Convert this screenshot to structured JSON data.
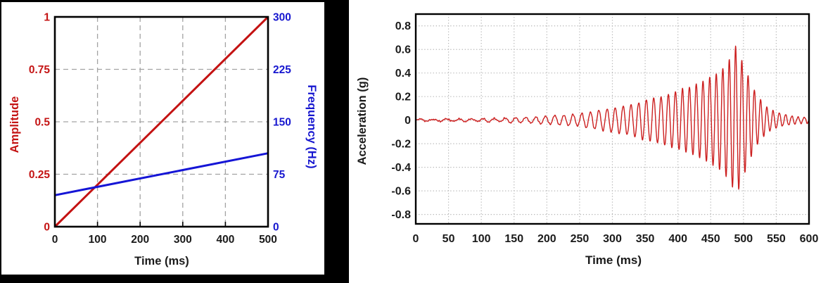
{
  "page": {
    "background": "#ffffff"
  },
  "chart_data": [
    {
      "type": "line",
      "title": "",
      "xlabel": "Time (ms)",
      "xlim": [
        0,
        500
      ],
      "x_ticks": [
        "0",
        "100",
        "200",
        "300",
        "400",
        "500"
      ],
      "x_tick_values": [
        0,
        100,
        200,
        300,
        400,
        500
      ],
      "grid": {
        "style": "dashed",
        "color": "#a3a3a3",
        "on": true
      },
      "frame_color": "#000000",
      "y_left": {
        "label": "Amplitude",
        "color": "#c41414",
        "lim": [
          0,
          1
        ],
        "ticks": [
          "0",
          "0.25",
          "0.5",
          "0.75",
          "1"
        ],
        "tick_values": [
          0,
          0.25,
          0.5,
          0.75,
          1
        ]
      },
      "y_right": {
        "label": "Frequency (Hz)",
        "color": "#1717cf",
        "lim": [
          0,
          300
        ],
        "ticks": [
          "0",
          "75",
          "150",
          "225",
          "300"
        ],
        "tick_values": [
          0,
          75,
          150,
          225,
          300
        ]
      },
      "series": [
        {
          "name": "Amplitude",
          "axis": "left",
          "color": "#c41212",
          "points": [
            [
              0,
              0
            ],
            [
              500,
              1
            ]
          ]
        },
        {
          "name": "Frequency (Hz)",
          "axis": "right",
          "color": "#1515d6",
          "points": [
            [
              0,
              45
            ],
            [
              500,
              105
            ]
          ]
        }
      ]
    },
    {
      "type": "line",
      "title": "",
      "xlabel": "Time (ms)",
      "ylabel": "Acceleration (g)",
      "xlim": [
        0,
        600
      ],
      "x_ticks": [
        "0",
        "50",
        "100",
        "150",
        "200",
        "250",
        "300",
        "350",
        "400",
        "450",
        "500",
        "550",
        "600"
      ],
      "x_tick_values": [
        0,
        50,
        100,
        150,
        200,
        250,
        300,
        350,
        400,
        450,
        500,
        550,
        600
      ],
      "ylim": [
        -0.88,
        0.9
      ],
      "y_ticks": [
        "0.8",
        "0.6",
        "0.4",
        "0.2",
        "0",
        "-0.2",
        "-0.4",
        "-0.6",
        "-0.8"
      ],
      "y_tick_values": [
        0.8,
        0.6,
        0.4,
        0.2,
        0,
        -0.2,
        -0.4,
        -0.6,
        -0.8
      ],
      "grid": {
        "style": "dotted",
        "color": "#b5b5b5",
        "on": true
      },
      "frame_color": "#000000",
      "series": [
        {
          "name": "acceleration",
          "color": "#cc2020",
          "signal": {
            "kind": "linear-chirp",
            "f0_hz": 45,
            "f1_hz": 105,
            "sweep_start_ms": 0,
            "sweep_end_ms": 500,
            "peak_g": 0.63,
            "peak_time_ms": 488,
            "envelope_g": [
              [
                0,
                0.008
              ],
              [
                60,
                0.01
              ],
              [
                110,
                0.013
              ],
              [
                150,
                0.02
              ],
              [
                200,
                0.032
              ],
              [
                250,
                0.055
              ],
              [
                300,
                0.1
              ],
              [
                330,
                0.13
              ],
              [
                350,
                0.17
              ],
              [
                375,
                0.2
              ],
              [
                400,
                0.25
              ],
              [
                425,
                0.3
              ],
              [
                445,
                0.35
              ],
              [
                460,
                0.4
              ],
              [
                470,
                0.45
              ],
              [
                480,
                0.53
              ],
              [
                488,
                0.63
              ],
              [
                494,
                0.57
              ],
              [
                500,
                0.47
              ],
              [
                507,
                0.38
              ],
              [
                514,
                0.28
              ],
              [
                521,
                0.21
              ],
              [
                529,
                0.15
              ],
              [
                538,
                0.1
              ],
              [
                548,
                0.07
              ],
              [
                560,
                0.05
              ],
              [
                575,
                0.035
              ],
              [
                600,
                0.022
              ]
            ]
          }
        }
      ]
    }
  ]
}
